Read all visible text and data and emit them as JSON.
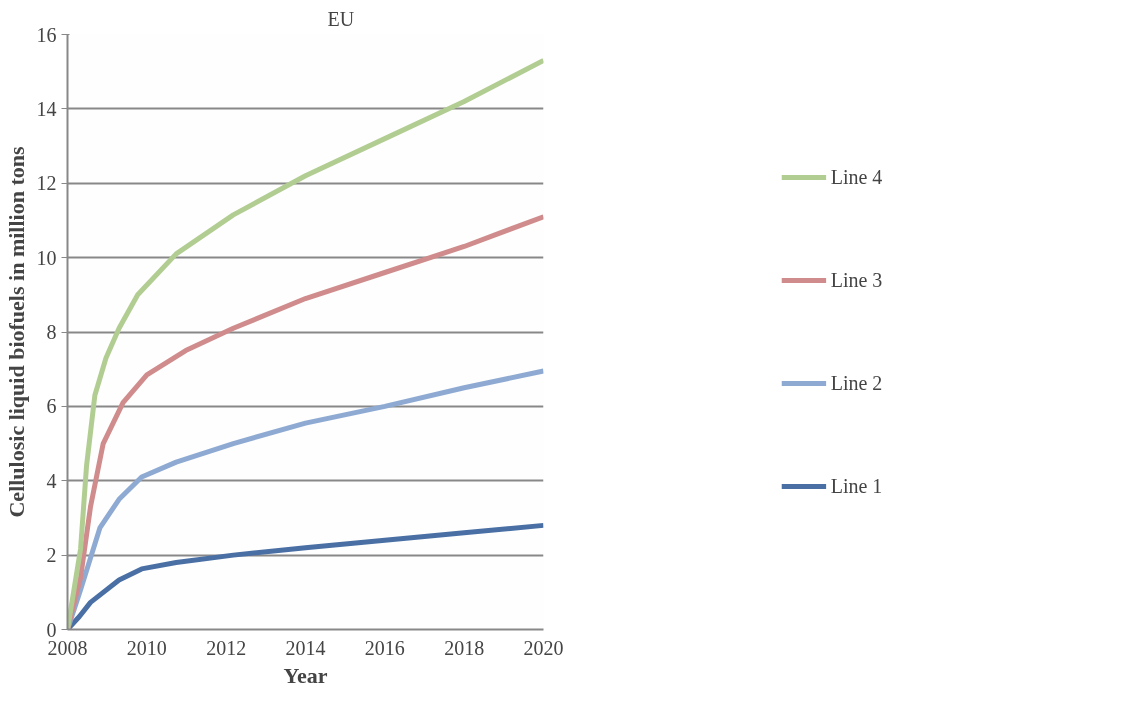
{
  "chart_data": {
    "type": "line",
    "title": "EU",
    "xlabel": "Year",
    "ylabel": "Cellulosic liquid biofuels in million tons",
    "xlim": [
      2008,
      2020
    ],
    "xticks": [
      2008,
      2010,
      2012,
      2014,
      2016,
      2018,
      2020
    ],
    "ylim": [
      0,
      16
    ],
    "yticks": [
      0,
      2,
      4,
      6,
      8,
      10,
      12,
      14,
      16
    ],
    "grid": "y",
    "legend": "right",
    "marker": "none",
    "line_style": "solid",
    "series": [
      {
        "name": "Line 1",
        "color": "#4a6fa5",
        "x": [
          2008,
          2008.3,
          2008.58,
          2009.3,
          2009.87,
          2010.74,
          2012.18,
          2014,
          2016,
          2018,
          2020
        ],
        "values": [
          0,
          0.35,
          0.73,
          1.33,
          1.63,
          1.8,
          2.0,
          2.2,
          2.4,
          2.6,
          2.8
        ]
      },
      {
        "name": "Line 2",
        "color": "#8eaad3",
        "x": [
          2008,
          2008.33,
          2008.82,
          2009.3,
          2009.87,
          2010.74,
          2012.18,
          2014,
          2016,
          2018,
          2020
        ],
        "values": [
          0,
          1.07,
          2.74,
          3.5,
          4.1,
          4.5,
          5.0,
          5.55,
          6.0,
          6.5,
          6.95
        ]
      },
      {
        "name": "Line 3",
        "color": "#d08c8c",
        "x": [
          2008,
          2008.33,
          2008.58,
          2008.9,
          2009.4,
          2010.0,
          2010.98,
          2012.18,
          2014,
          2016,
          2018,
          2020
        ],
        "values": [
          0,
          1.4,
          3.3,
          5.0,
          6.1,
          6.85,
          7.5,
          8.1,
          8.9,
          9.6,
          10.3,
          11.1
        ]
      },
      {
        "name": "Line 4",
        "color": "#b2cd92",
        "x": [
          2008,
          2008.33,
          2008.48,
          2008.69,
          2008.97,
          2009.3,
          2009.77,
          2010.74,
          2012.18,
          2014,
          2016,
          2018,
          2020
        ],
        "values": [
          0,
          2.17,
          4.4,
          6.3,
          7.3,
          8.1,
          9.0,
          10.1,
          11.15,
          12.2,
          13.2,
          14.2,
          15.3
        ]
      }
    ]
  }
}
